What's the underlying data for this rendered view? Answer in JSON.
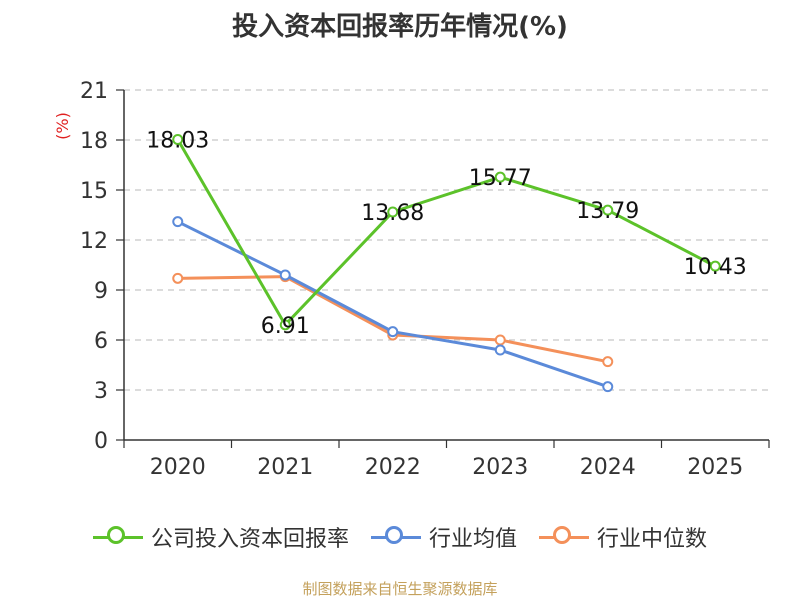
{
  "title": "投入资本回报率历年情况(%)",
  "source_note": "制图数据来自恒生聚源数据库",
  "chart_data": {
    "type": "line",
    "title": "投入资本回报率历年情况(%)",
    "xlabel": "",
    "ylabel": "(%)",
    "ylim": [
      0,
      21
    ],
    "yticks": [
      0,
      3,
      6,
      9,
      12,
      15,
      18,
      21
    ],
    "grid": true,
    "legend": "bottom",
    "categories": [
      "2020",
      "2021",
      "2022",
      "2023",
      "2024",
      "2025"
    ],
    "series": [
      {
        "name": "公司投入资本回报率",
        "color": "#5cc22a",
        "values": [
          18.03,
          6.91,
          13.68,
          15.77,
          13.79,
          10.43
        ],
        "labels": [
          "18.03",
          "6.91",
          "13.68",
          "15.77",
          "13.79",
          "10.43"
        ]
      },
      {
        "name": "行业均值",
        "color": "#5b8ad9",
        "values": [
          13.1,
          9.9,
          6.5,
          5.4,
          3.2,
          null
        ]
      },
      {
        "name": "行业中位数",
        "color": "#f4905a",
        "values": [
          9.7,
          9.8,
          6.3,
          6.0,
          4.7,
          null
        ]
      }
    ]
  }
}
